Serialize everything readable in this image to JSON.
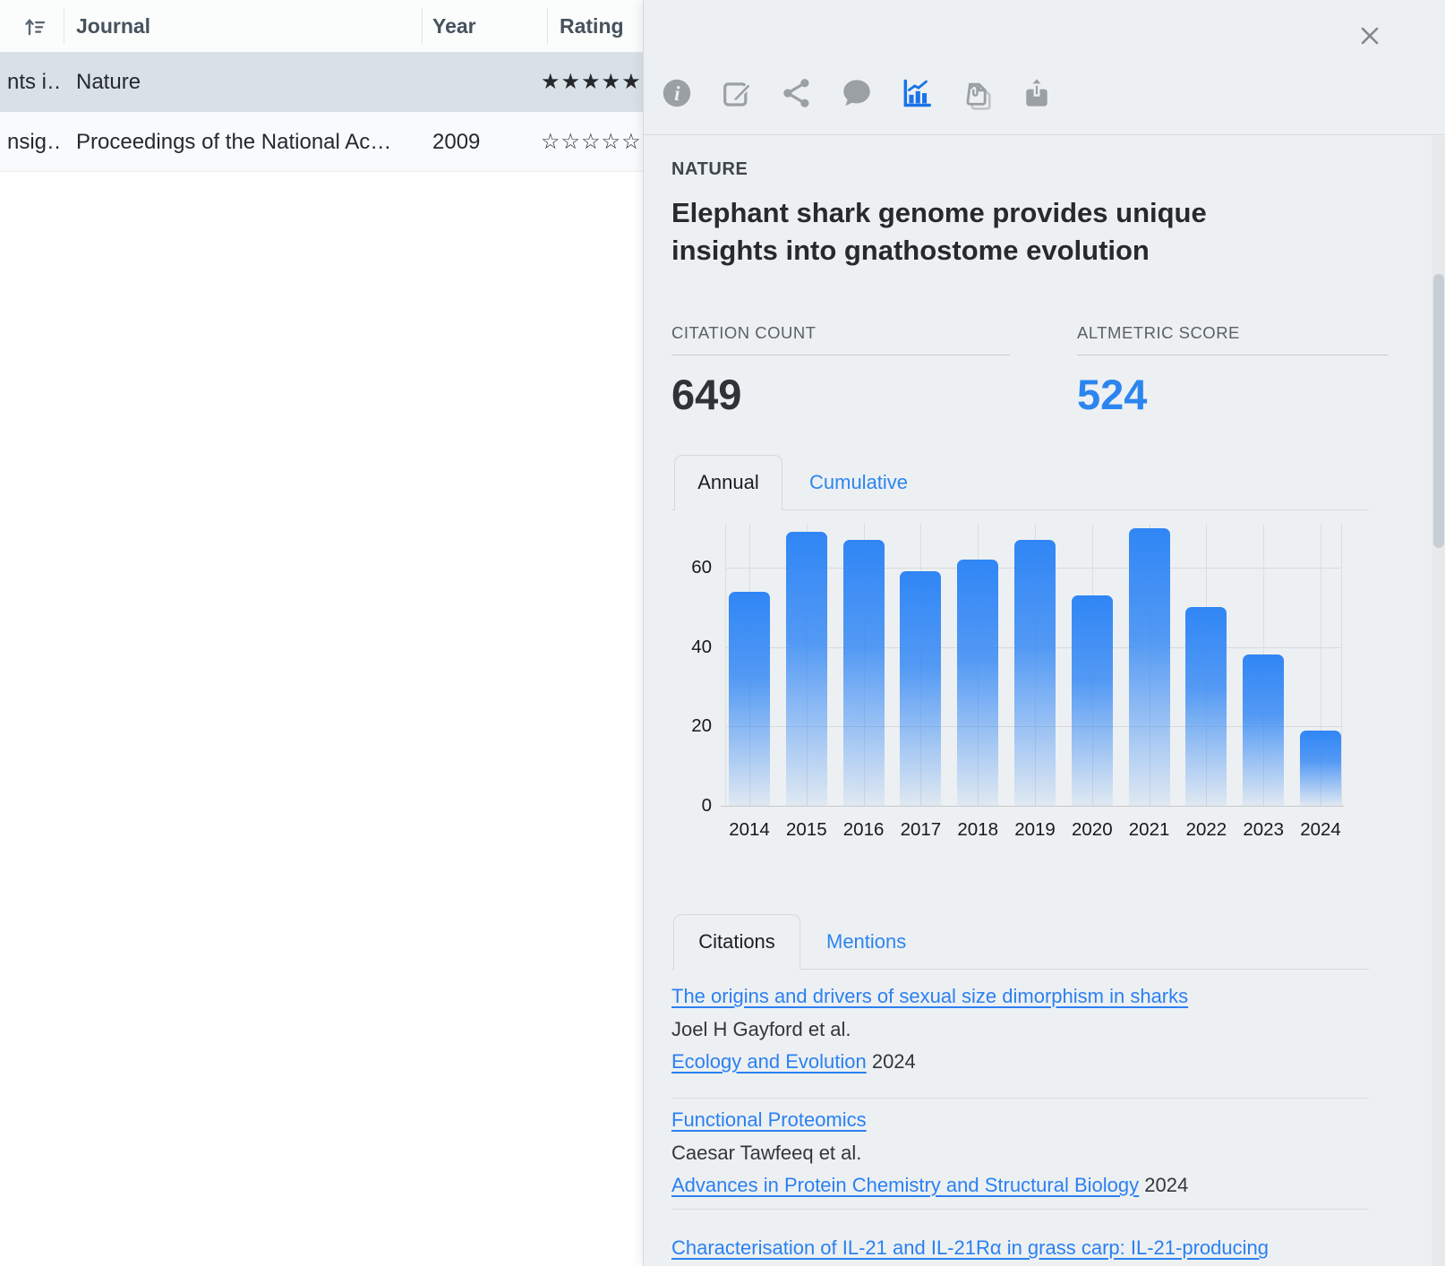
{
  "table": {
    "columns": {
      "journal": "Journal",
      "year": "Year",
      "rating": "Rating"
    },
    "sort_icon": "sort-ascending-icon",
    "rows": [
      {
        "title_fragment": "nts i…",
        "journal": "Nature",
        "year": "",
        "rating_filled": 5,
        "rating_total": 5,
        "selected": true
      },
      {
        "title_fragment": "nsig…",
        "journal": "Proceedings of the National Ac…",
        "year": "2009",
        "rating_filled": 0,
        "rating_total": 5,
        "selected": false
      }
    ]
  },
  "panel": {
    "toolbar": {
      "icons": [
        {
          "name": "info-icon",
          "active": false
        },
        {
          "name": "edit-icon",
          "active": false
        },
        {
          "name": "share-icon",
          "active": false
        },
        {
          "name": "comment-icon",
          "active": false
        },
        {
          "name": "metrics-icon",
          "active": true
        },
        {
          "name": "attachments-icon",
          "active": false
        },
        {
          "name": "export-icon",
          "active": false
        }
      ],
      "close_icon": "close-icon"
    },
    "journal_label": "NATURE",
    "paper_title": "Elephant shark genome provides unique insights into gnathostome evolution",
    "stats": [
      {
        "label": "CITATION COUNT",
        "value": "649",
        "color": "#2f3338"
      },
      {
        "label": "ALTMETRIC SCORE",
        "value": "524",
        "color": "#2c85ef"
      }
    ],
    "chart_tabs": [
      {
        "label": "Annual",
        "active": true
      },
      {
        "label": "Cumulative",
        "active": false
      }
    ],
    "list_tabs": [
      {
        "label": "Citations",
        "active": true
      },
      {
        "label": "Mentions",
        "active": false
      }
    ],
    "citations": [
      {
        "title": "The origins and drivers of sexual size dimorphism in sharks",
        "authors": "Joel H Gayford et al.",
        "journal": "Ecology and Evolution",
        "year": "2024"
      },
      {
        "title": "Functional Proteomics",
        "authors": "Caesar Tawfeeq et al.",
        "journal": "Advances in Protein Chemistry and Structural Biology",
        "year": "2024"
      },
      {
        "title": "Characterisation of IL-21 and IL-21Rα in grass carp: IL-21-producing"
      }
    ]
  },
  "chart_data": {
    "type": "bar",
    "title": "Citations per year",
    "xlabel": "",
    "ylabel": "",
    "categories": [
      "2014",
      "2015",
      "2016",
      "2017",
      "2018",
      "2019",
      "2020",
      "2021",
      "2022",
      "2023",
      "2024"
    ],
    "values": [
      54,
      69,
      67,
      59,
      62,
      67,
      53,
      70,
      50,
      38,
      19
    ],
    "yticks": [
      0,
      20,
      40,
      60
    ],
    "ylim": [
      0,
      72
    ],
    "grid": true,
    "legend": false,
    "bar_color_top": "#3086f5",
    "bar_color_bottom": "#e3eefc"
  },
  "colors": {
    "accent_blue": "#2c85ef",
    "panel_bg": "#edf0f2",
    "selected_row_bg": "#d8e1e8",
    "icon_gray": "#9aa0a4"
  }
}
